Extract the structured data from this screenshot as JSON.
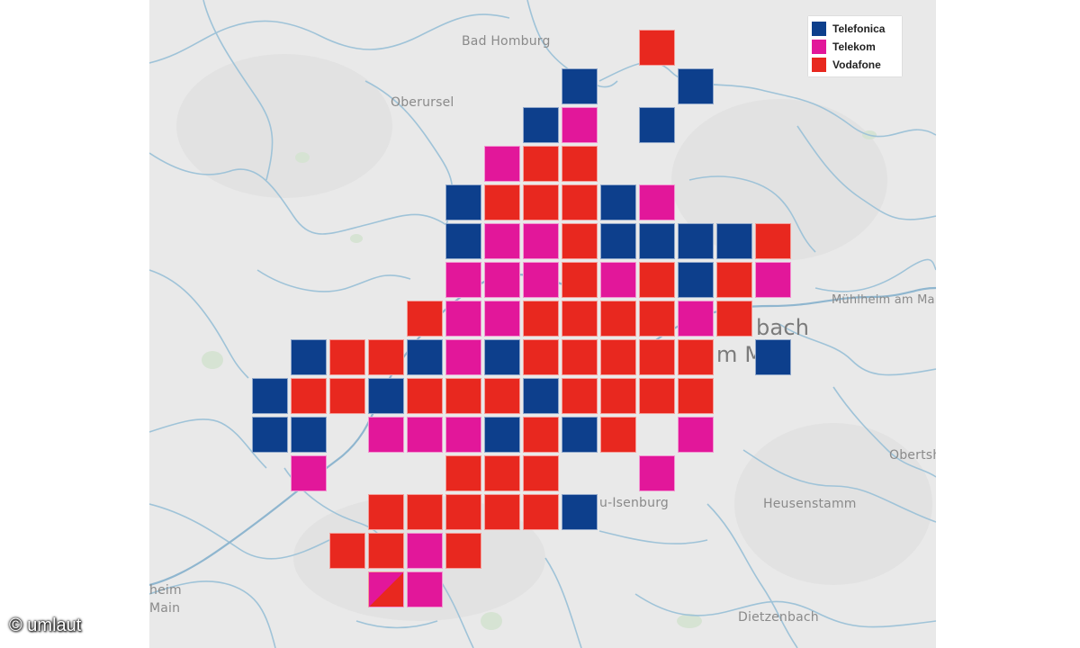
{
  "legend": {
    "items": [
      {
        "label": "Telefonica",
        "color": "#0d3f8c"
      },
      {
        "label": "Telekom",
        "color": "#e2179a"
      },
      {
        "label": "Vodafone",
        "color": "#e8281f"
      }
    ]
  },
  "colors": {
    "T": "#0d3f8c",
    "K": "#e2179a",
    "V": "#e8281f",
    "map_background": "#e9e9e9",
    "border_lines": "#9fc3d8"
  },
  "places": [
    {
      "name": "Bad Homburg"
    },
    {
      "name": "Oberursel"
    },
    {
      "name": "Mühlheim am Main"
    },
    {
      "name": "bach"
    },
    {
      "name": "m M"
    },
    {
      "name": "Obertshausen"
    },
    {
      "name": "u-Isenburg"
    },
    {
      "name": "Heusenstamm"
    },
    {
      "name": "heim"
    },
    {
      "name": "Main"
    },
    {
      "name": "Dietzenbach"
    }
  ],
  "coverage_grid": {
    "description_rows": "row index 0 = top, each cell one operator code: T Telefonica, K Telekom, V Vodafone",
    "rows": [
      [
        [
          13,
          "V"
        ]
      ],
      [
        [
          11,
          "T"
        ],
        [
          14,
          "T"
        ]
      ],
      [
        [
          10,
          "T"
        ],
        [
          11,
          "K"
        ],
        [
          13,
          "T"
        ]
      ],
      [
        [
          9,
          "K"
        ],
        [
          10,
          "V"
        ],
        [
          11,
          "V"
        ]
      ],
      [
        [
          8,
          "T"
        ],
        [
          9,
          "V"
        ],
        [
          10,
          "V"
        ],
        [
          11,
          "V"
        ],
        [
          12,
          "T"
        ],
        [
          13,
          "K"
        ]
      ],
      [
        [
          8,
          "T"
        ],
        [
          9,
          "K"
        ],
        [
          10,
          "K"
        ],
        [
          11,
          "V"
        ],
        [
          12,
          "T"
        ],
        [
          13,
          "T"
        ],
        [
          14,
          "T"
        ],
        [
          15,
          "T"
        ],
        [
          16,
          "V"
        ]
      ],
      [
        [
          8,
          "K"
        ],
        [
          9,
          "K"
        ],
        [
          10,
          "K"
        ],
        [
          11,
          "V"
        ],
        [
          12,
          "K"
        ],
        [
          13,
          "V"
        ],
        [
          14,
          "T"
        ],
        [
          15,
          "V"
        ],
        [
          16,
          "K"
        ]
      ],
      [
        [
          7,
          "V"
        ],
        [
          8,
          "K"
        ],
        [
          9,
          "K"
        ],
        [
          10,
          "V"
        ],
        [
          11,
          "V"
        ],
        [
          12,
          "V"
        ],
        [
          13,
          "V"
        ],
        [
          14,
          "K"
        ],
        [
          15,
          "V"
        ]
      ],
      [
        [
          4,
          "T"
        ],
        [
          5,
          "V"
        ],
        [
          6,
          "V"
        ],
        [
          7,
          "T"
        ],
        [
          8,
          "K"
        ],
        [
          9,
          "T"
        ],
        [
          10,
          "V"
        ],
        [
          11,
          "V"
        ],
        [
          12,
          "V"
        ],
        [
          13,
          "V"
        ],
        [
          14,
          "V"
        ],
        [
          16,
          "T"
        ]
      ],
      [
        [
          3,
          "T"
        ],
        [
          4,
          "V"
        ],
        [
          5,
          "V"
        ],
        [
          6,
          "T"
        ],
        [
          7,
          "V"
        ],
        [
          8,
          "V"
        ],
        [
          9,
          "V"
        ],
        [
          10,
          "T"
        ],
        [
          11,
          "V"
        ],
        [
          12,
          "V"
        ],
        [
          13,
          "V"
        ],
        [
          14,
          "V"
        ]
      ],
      [
        [
          3,
          "T"
        ],
        [
          4,
          "T"
        ],
        [
          6,
          "K"
        ],
        [
          7,
          "K"
        ],
        [
          8,
          "K"
        ],
        [
          9,
          "T"
        ],
        [
          10,
          "V"
        ],
        [
          11,
          "T"
        ],
        [
          12,
          "V"
        ],
        [
          14,
          "K"
        ]
      ],
      [
        [
          4,
          "K"
        ],
        [
          8,
          "V"
        ],
        [
          9,
          "V"
        ],
        [
          10,
          "V"
        ],
        [
          13,
          "K"
        ]
      ],
      [
        [
          6,
          "V"
        ],
        [
          7,
          "V"
        ],
        [
          8,
          "V"
        ],
        [
          9,
          "V"
        ],
        [
          10,
          "V"
        ],
        [
          11,
          "T"
        ]
      ],
      [
        [
          5,
          "V"
        ],
        [
          6,
          "V"
        ],
        [
          7,
          "K"
        ],
        [
          8,
          "V"
        ]
      ],
      [
        [
          6,
          "KV"
        ],
        [
          7,
          "K"
        ]
      ]
    ],
    "grid_origin_col_offset": 3
  },
  "copyright": "© umlaut"
}
